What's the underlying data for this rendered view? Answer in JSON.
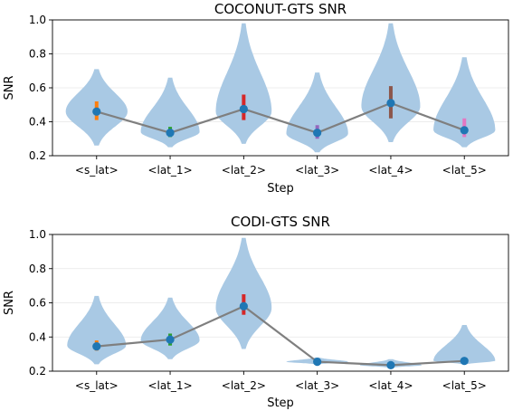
{
  "chart_data": [
    {
      "type": "violin",
      "title": "COCONUT-GTS SNR",
      "xlabel": "Step",
      "ylabel": "SNR",
      "categories": [
        "<s_lat>",
        "<lat_1>",
        "<lat_2>",
        "<lat_3>",
        "<lat_4>",
        "<lat_5>"
      ],
      "ylim": [
        0.2,
        1.0
      ],
      "yticks": [
        "0.2",
        "0.4",
        "0.6",
        "0.8",
        "1.0"
      ],
      "grid": "horizontal",
      "mean_line": [
        0.46,
        0.335,
        0.475,
        0.335,
        0.51,
        0.35
      ],
      "iqr": [
        [
          0.41,
          0.52
        ],
        [
          0.31,
          0.37
        ],
        [
          0.41,
          0.56
        ],
        [
          0.3,
          0.38
        ],
        [
          0.42,
          0.61
        ],
        [
          0.31,
          0.42
        ]
      ],
      "violins": [
        {
          "min": 0.26,
          "max": 0.71,
          "peak": 0.46,
          "width": 0.42
        },
        {
          "min": 0.25,
          "max": 0.66,
          "peak": 0.34,
          "width": 0.4
        },
        {
          "min": 0.27,
          "max": 0.98,
          "peak": 0.46,
          "width": 0.38
        },
        {
          "min": 0.22,
          "max": 0.69,
          "peak": 0.33,
          "width": 0.42
        },
        {
          "min": 0.28,
          "max": 0.98,
          "peak": 0.49,
          "width": 0.4
        },
        {
          "min": 0.25,
          "max": 0.78,
          "peak": 0.35,
          "width": 0.42
        }
      ],
      "iqr_colors": [
        "#ff7f0e",
        "#2ca02c",
        "#d62728",
        "#9467bd",
        "#8c564b",
        "#e377c2"
      ],
      "violin_color": "#a9c9e4",
      "line_color": "#7f7f7f",
      "marker_color": "#1f77b4"
    },
    {
      "type": "violin",
      "title": "CODI-GTS SNR",
      "xlabel": "Step",
      "ylabel": "SNR",
      "categories": [
        "<s_lat>",
        "<lat_1>",
        "<lat_2>",
        "<lat_3>",
        "<lat_4>",
        "<lat_5>"
      ],
      "ylim": [
        0.2,
        1.0
      ],
      "yticks": [
        "0.2",
        "0.4",
        "0.6",
        "0.8",
        "1.0"
      ],
      "grid": "horizontal",
      "mean_line": [
        0.345,
        0.385,
        0.58,
        0.255,
        0.235,
        0.26
      ],
      "iqr": [
        [
          0.32,
          0.38
        ],
        [
          0.35,
          0.42
        ],
        [
          0.53,
          0.65
        ],
        [
          0.25,
          0.26
        ],
        [
          0.23,
          0.24
        ],
        [
          0.25,
          0.27
        ]
      ],
      "violins": [
        {
          "min": 0.24,
          "max": 0.64,
          "peak": 0.35,
          "width": 0.4
        },
        {
          "min": 0.27,
          "max": 0.63,
          "peak": 0.38,
          "width": 0.4
        },
        {
          "min": 0.33,
          "max": 0.98,
          "peak": 0.57,
          "width": 0.38
        },
        {
          "min": 0.24,
          "max": 0.28,
          "peak": 0.255,
          "width": 0.42
        },
        {
          "min": 0.22,
          "max": 0.27,
          "peak": 0.235,
          "width": 0.42
        },
        {
          "min": 0.24,
          "max": 0.47,
          "peak": 0.26,
          "width": 0.42
        }
      ],
      "iqr_colors": [
        "#ff7f0e",
        "#2ca02c",
        "#d62728",
        "#9467bd",
        "#8c564b",
        "#e377c2"
      ],
      "violin_color": "#a9c9e4",
      "line_color": "#7f7f7f",
      "marker_color": "#1f77b4"
    }
  ]
}
